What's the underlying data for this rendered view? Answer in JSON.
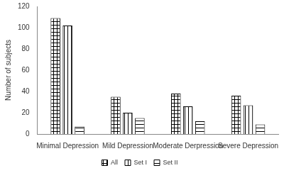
{
  "chart_data": {
    "type": "bar",
    "y_label": "Number of subjects",
    "categories": [
      "Minimal Depression",
      "Mild Depression",
      "Moderate Derpression",
      "Severe Depression"
    ],
    "series": [
      {
        "name": "All",
        "color": "#000000",
        "values": [
          109,
          35,
          38,
          36
        ]
      },
      {
        "name": "Set I",
        "color": "#000000",
        "values": [
          102,
          20,
          26,
          27
        ]
      },
      {
        "name": "Set II",
        "color": "#000000",
        "values": [
          7,
          15,
          12,
          9
        ]
      }
    ],
    "ylim": [
      0,
      120
    ],
    "yticks": [
      0,
      20,
      40,
      60,
      80,
      100,
      120
    ],
    "grid": false,
    "legend": "bottom"
  }
}
